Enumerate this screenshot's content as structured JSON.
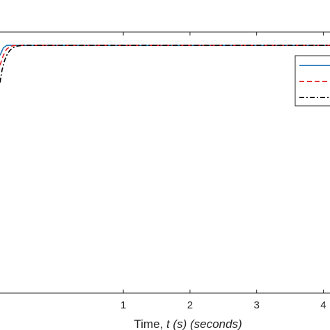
{
  "chart_data": {
    "type": "line",
    "title": "",
    "xlabel": {
      "prefix": "Time, ",
      "italic": "t (s) (seconds)"
    },
    "ylabel": "",
    "xlim": [
      -0.85,
      4.1
    ],
    "ylim": [
      0,
      1.054
    ],
    "x_ticks": [
      1,
      2,
      3,
      4
    ],
    "grid": false,
    "legend": {
      "placement": "right",
      "entries": [
        {
          "color": "#1f77b4",
          "style": "solid"
        },
        {
          "color": "#e41a1c",
          "style": "dashed"
        },
        {
          "color": "#000000",
          "style": "dashdot"
        }
      ]
    },
    "series": [
      {
        "color": "#1f77b4",
        "style": "solid",
        "x": [
          -0.85,
          -0.8,
          -0.75,
          -0.7,
          -0.65,
          -0.6,
          0,
          1,
          2,
          3,
          4,
          4.1
        ],
        "y": [
          0.96,
          0.99,
          1.0,
          1.0,
          1.0,
          1.0,
          1.0,
          1.0,
          1.0,
          1.0,
          1.0,
          1.0
        ]
      },
      {
        "color": "#e41a1c",
        "style": "dashed",
        "x": [
          -0.85,
          -0.8,
          -0.75,
          -0.7,
          -0.65,
          -0.6,
          -0.5,
          0,
          1,
          2,
          3,
          4,
          4.1
        ],
        "y": [
          0.92,
          0.96,
          0.985,
          0.995,
          0.999,
          1.0,
          1.0,
          1.0,
          1.0,
          1.0,
          1.0,
          1.0,
          1.0
        ]
      },
      {
        "color": "#000000",
        "style": "dashdot",
        "x": [
          -0.85,
          -0.82,
          -0.78,
          -0.74,
          -0.7,
          -0.66,
          -0.62,
          -0.58,
          -0.54,
          -0.5,
          -0.4,
          0,
          1,
          2,
          3,
          4,
          4.1
        ],
        "y": [
          0.85,
          0.9,
          0.94,
          0.965,
          0.98,
          0.99,
          0.995,
          0.998,
          0.999,
          1.0,
          1.0,
          1.0,
          1.0,
          1.0,
          1.0,
          1.0,
          1.0
        ]
      }
    ]
  }
}
